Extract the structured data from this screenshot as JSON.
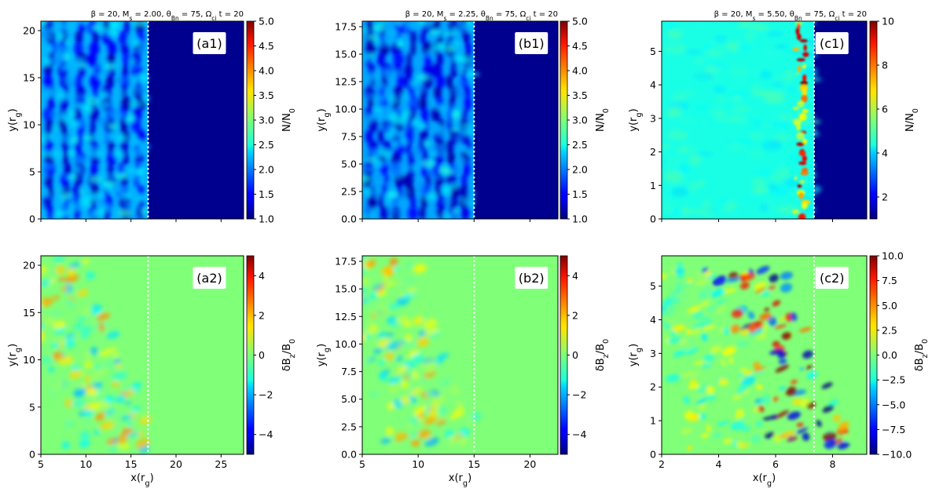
{
  "figure": {
    "colormap": "jet",
    "shock_line_color": "#ffffff",
    "density_background": "#00008f",
    "field_background": "#80ff78",
    "cases": [
      {
        "title": "β = 20, M_s = 2.00, θ_Bn = 75, Ω_ci t = 20",
        "xlim": [
          5,
          27.5
        ],
        "ylim": [
          0,
          21
        ],
        "x_ticks": [
          5,
          10,
          15,
          20,
          25
        ],
        "y_ticks": [
          0,
          5,
          10,
          15,
          20
        ],
        "shock_x": 16.9
      },
      {
        "title": "β = 20, M_s = 2.25, θ_Bn = 75, Ω_ci t = 20",
        "xlim": [
          5,
          22.5
        ],
        "ylim": [
          0,
          18
        ],
        "x_ticks": [
          5,
          10,
          15,
          20
        ],
        "y_ticks": [
          0.0,
          2.5,
          5.0,
          7.5,
          10.0,
          12.5,
          15.0,
          17.5
        ],
        "shock_x": 15.0
      },
      {
        "title": "β = 20, M_s = 5.50, θ_Bn = 75, Ω_ci t = 20",
        "xlim": [
          2,
          9.2
        ],
        "ylim": [
          0,
          5.9
        ],
        "x_ticks": [
          2,
          4,
          6,
          8
        ],
        "y_ticks": [
          0,
          1,
          2,
          3,
          4,
          5
        ],
        "shock_x": 7.35
      }
    ]
  },
  "chart_data": [
    {
      "type": "heatmap",
      "label": "(a1)",
      "title": "β = 20, M_s = 2.00, θ_Bn = 75, Ω_ci t = 20",
      "xlabel": "",
      "ylabel": "y(r_g)",
      "xlim": [
        5,
        27.5
      ],
      "ylim": [
        0,
        21
      ],
      "colorbar_label": "N/N_0",
      "colorbar_range": [
        1.0,
        5.0
      ],
      "colorbar_ticks": [
        1.0,
        1.5,
        2.0,
        2.5,
        3.0,
        3.5,
        4.0,
        4.5,
        5.0
      ],
      "shock_x": 16.9
    },
    {
      "type": "heatmap",
      "label": "(b1)",
      "title": "β = 20, M_s = 2.25, θ_Bn = 75, Ω_ci t = 20",
      "xlabel": "",
      "ylabel": "y(r_g)",
      "xlim": [
        5,
        22.5
      ],
      "ylim": [
        0,
        18
      ],
      "colorbar_label": "N/N_0",
      "colorbar_range": [
        1.0,
        5.0
      ],
      "colorbar_ticks": [
        1.0,
        1.5,
        2.0,
        2.5,
        3.0,
        3.5,
        4.0,
        4.5,
        5.0
      ],
      "shock_x": 15.0
    },
    {
      "type": "heatmap",
      "label": "(c1)",
      "title": "β = 20, M_s = 5.50, θ_Bn = 75, Ω_ci t = 20",
      "xlabel": "",
      "ylabel": "y(r_g)",
      "xlim": [
        2,
        9.2
      ],
      "ylim": [
        0,
        5.9
      ],
      "colorbar_label": "N/N_0",
      "colorbar_range": [
        1,
        10
      ],
      "colorbar_ticks": [
        2,
        4,
        6,
        8,
        10
      ],
      "shock_x": 7.35
    },
    {
      "type": "heatmap",
      "label": "(a2)",
      "xlabel": "x(r_g)",
      "ylabel": "y(r_g)",
      "xlim": [
        5,
        27.5
      ],
      "ylim": [
        0,
        21
      ],
      "colorbar_label": "δB_z/B_0",
      "colorbar_range": [
        -5,
        5
      ],
      "colorbar_ticks": [
        -4,
        -2,
        0,
        2,
        4
      ],
      "shock_x": 16.9
    },
    {
      "type": "heatmap",
      "label": "(b2)",
      "xlabel": "x(r_g)",
      "ylabel": "y(r_g)",
      "xlim": [
        5,
        22.5
      ],
      "ylim": [
        0,
        18
      ],
      "colorbar_label": "δB_z/B_0",
      "colorbar_range": [
        -5,
        5
      ],
      "colorbar_ticks": [
        -4,
        -2,
        0,
        2,
        4
      ],
      "shock_x": 15.0
    },
    {
      "type": "heatmap",
      "label": "(c2)",
      "xlabel": "x(r_g)",
      "ylabel": "y(r_g)",
      "xlim": [
        2,
        9.2
      ],
      "ylim": [
        0,
        5.9
      ],
      "colorbar_label": "δB_z/B_0",
      "colorbar_range": [
        -10,
        10
      ],
      "colorbar_ticks": [
        -10.0,
        -7.5,
        -5.0,
        -2.5,
        0.0,
        2.5,
        5.0,
        7.5,
        10.0
      ],
      "shock_x": 7.35
    }
  ]
}
